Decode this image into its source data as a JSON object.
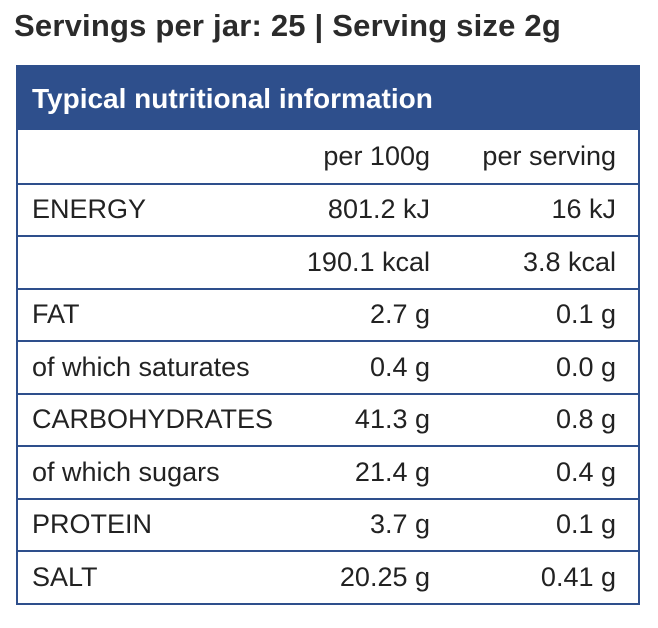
{
  "heading": "Servings per jar: 25 | Serving size 2g",
  "panel": {
    "title": "Typical nutritional information",
    "columns": {
      "name": "",
      "per_100g": "per 100g",
      "per_serving": "per serving"
    },
    "rows": [
      {
        "name": "ENERGY",
        "per_100g": "801.2 kJ",
        "per_serving": "16 kJ"
      },
      {
        "name": "",
        "per_100g": "190.1 kcal",
        "per_serving": "3.8 kcal"
      },
      {
        "name": "FAT",
        "per_100g": "2.7 g",
        "per_serving": "0.1 g"
      },
      {
        "name": "of which saturates",
        "per_100g": "0.4 g",
        "per_serving": "0.0 g"
      },
      {
        "name": "CARBOHYDRATES",
        "per_100g": "41.3 g",
        "per_serving": "0.8 g"
      },
      {
        "name": "of which sugars",
        "per_100g": "21.4 g",
        "per_serving": "0.4 g"
      },
      {
        "name": "PROTEIN",
        "per_100g": "3.7 g",
        "per_serving": "0.1 g"
      },
      {
        "name": "SALT",
        "per_100g": "20.25 g",
        "per_serving": "0.41 g"
      }
    ]
  },
  "colors": {
    "accent": "#2e4f8c",
    "text": "#222222",
    "heading": "#2b2b2b"
  }
}
